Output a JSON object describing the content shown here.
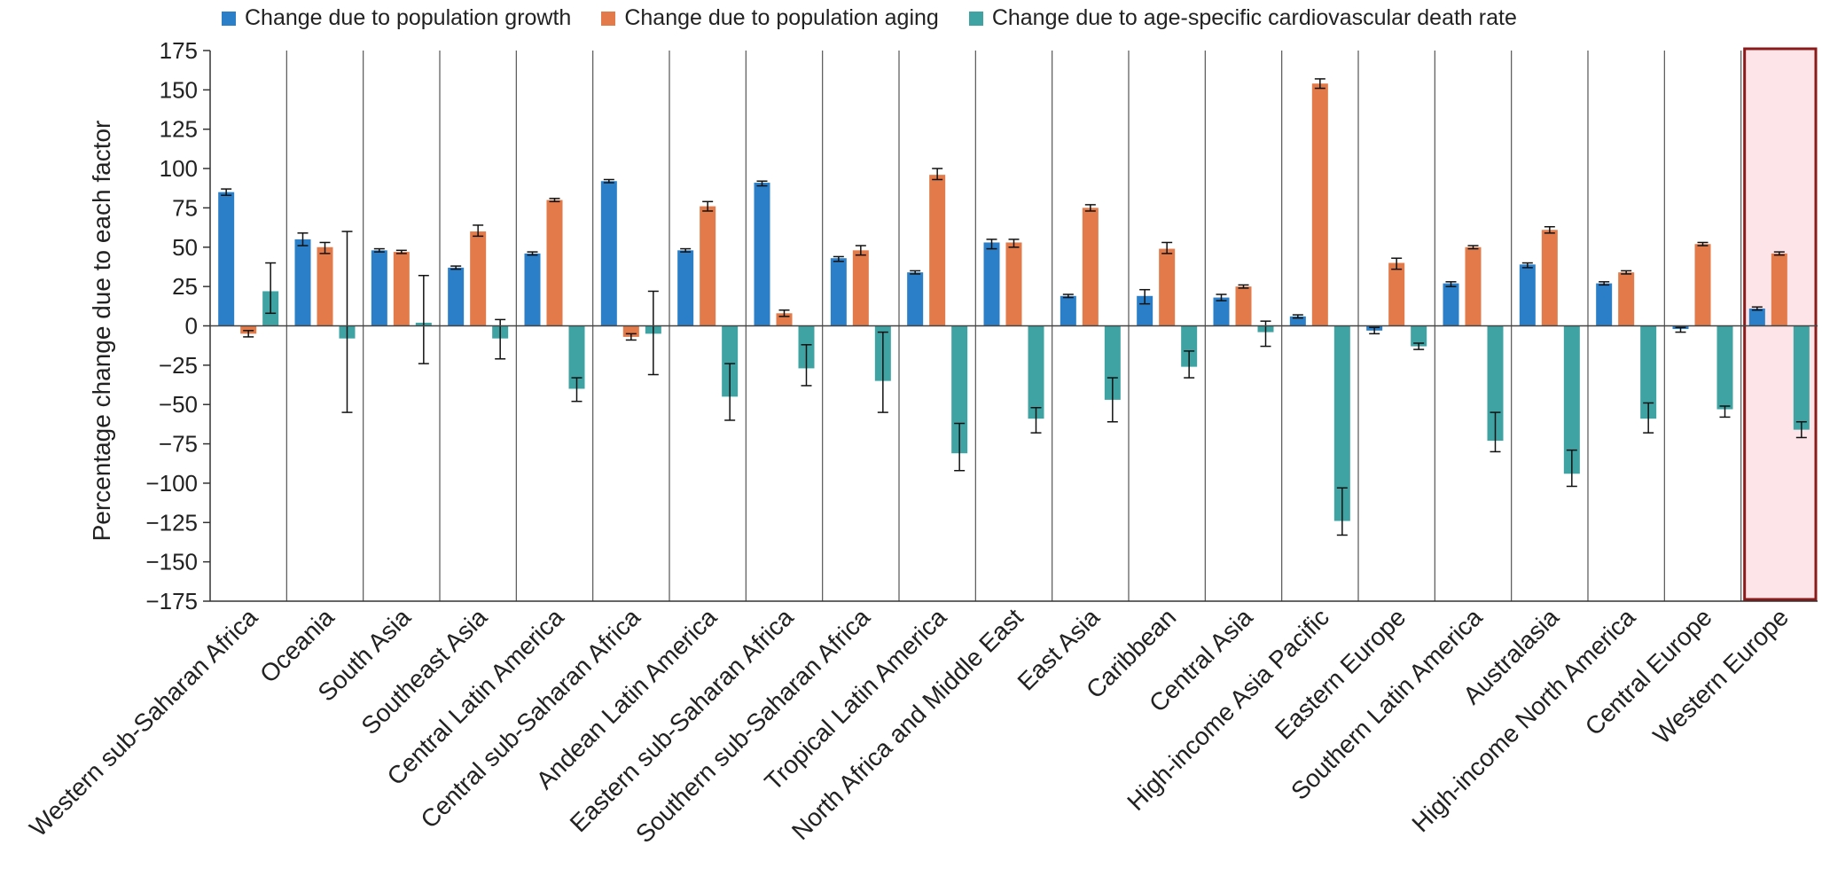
{
  "chart_data": {
    "type": "bar",
    "ylabel": "Percentage change due to each factor",
    "ylim": [
      -175,
      175
    ],
    "yticks": [
      175,
      150,
      125,
      100,
      75,
      50,
      25,
      0,
      -25,
      -50,
      -75,
      -100,
      -125,
      -150,
      -175
    ],
    "categories": [
      "Western sub-Saharan Africa",
      "Oceania",
      "South Asia",
      "Southeast Asia",
      "Central Latin America",
      "Central sub-Saharan Africa",
      "Andean Latin America",
      "Eastern sub-Saharan Africa",
      "Southern sub-Saharan Africa",
      "Tropical Latin America",
      "North Africa and Middle East",
      "East Asia",
      "Caribbean",
      "Central Asia",
      "High-income Asia Pacific",
      "Eastern Europe",
      "Southern Latin America",
      "Australasia",
      "High-income North America",
      "Central Europe",
      "Western Europe"
    ],
    "highlighted_category": "Western Europe",
    "series": [
      {
        "name": "Change due to population growth",
        "color": "#2a7fc8",
        "values": [
          85,
          55,
          48,
          37,
          46,
          92,
          48,
          91,
          43,
          34,
          53,
          19,
          19,
          18,
          6,
          -3,
          27,
          39,
          27,
          -2,
          11
        ],
        "err_low": [
          83,
          51,
          47,
          36,
          45,
          91,
          47,
          89,
          41,
          33,
          49,
          18,
          14,
          16,
          5,
          -5,
          25,
          37,
          26,
          -4,
          10
        ],
        "err_high": [
          87,
          59,
          49,
          38,
          47,
          93,
          49,
          92,
          44,
          35,
          55,
          20,
          23,
          20,
          7,
          -1,
          28,
          40,
          28,
          -1,
          12
        ]
      },
      {
        "name": "Change due to population aging",
        "color": "#e27a4a",
        "values": [
          -5,
          50,
          47,
          60,
          80,
          -7,
          76,
          8,
          48,
          96,
          53,
          75,
          49,
          25,
          154,
          40,
          50,
          61,
          34,
          52,
          46
        ],
        "err_low": [
          -7,
          46,
          46,
          57,
          79,
          -9,
          73,
          6,
          45,
          93,
          50,
          73,
          46,
          24,
          151,
          36,
          49,
          59,
          33,
          51,
          45
        ],
        "err_high": [
          -3,
          53,
          48,
          64,
          81,
          -5,
          79,
          10,
          51,
          100,
          55,
          77,
          53,
          26,
          157,
          43,
          51,
          63,
          35,
          53,
          47
        ]
      },
      {
        "name": "Change due to age-specific cardiovascular death rate",
        "color": "#3fa3a3",
        "values": [
          22,
          -8,
          2,
          -8,
          -40,
          -5,
          -45,
          -27,
          -35,
          -81,
          -59,
          -47,
          -26,
          -4,
          -124,
          -13,
          -73,
          -94,
          -59,
          -53,
          -66
        ],
        "err_low": [
          8,
          -55,
          -24,
          -21,
          -48,
          -31,
          -60,
          -38,
          -55,
          -92,
          -68,
          -61,
          -33,
          -13,
          -133,
          -15,
          -80,
          -102,
          -68,
          -58,
          -71
        ],
        "err_high": [
          40,
          60,
          32,
          4,
          -33,
          22,
          -24,
          -12,
          -4,
          -62,
          -52,
          -33,
          -16,
          3,
          -103,
          -11,
          -55,
          -79,
          -49,
          -51,
          -61
        ]
      }
    ]
  }
}
